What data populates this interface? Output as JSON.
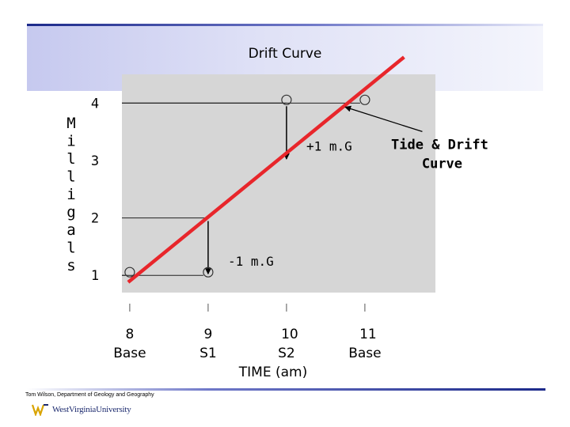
{
  "title": "Drift Curve",
  "footer": {
    "credit": "Tom Wilson, Department of Geology and Geography",
    "logo_text": "WestVirginiaUniversity"
  },
  "colors": {
    "fit_line": "#e8262b",
    "plot_bg": "#d6d6d6",
    "text": "#000000"
  },
  "chart_data": {
    "type": "scatter",
    "ylabel": "Milligals",
    "xlabel": "TIME (am)",
    "xlim": [
      7.9,
      11.9
    ],
    "ylim": [
      0.7,
      4.5
    ],
    "y_ticks": [
      1,
      2,
      3,
      4
    ],
    "x_ticks": [
      {
        "x": 8,
        "label": "8",
        "sublabel": "Base"
      },
      {
        "x": 9,
        "label": "9",
        "sublabel": "S1"
      },
      {
        "x": 10,
        "label": "10",
        "sublabel": "S2"
      },
      {
        "x": 11,
        "label": "11",
        "sublabel": "Base"
      }
    ],
    "grid": false,
    "points": [
      {
        "x": 8,
        "y": 1
      },
      {
        "x": 9,
        "y": 1
      },
      {
        "x": 10,
        "y": 4
      },
      {
        "x": 11,
        "y": 4
      }
    ],
    "trend_line": {
      "name": "Tide & Drift Curve",
      "start": {
        "x": 7.98,
        "y": 0.88
      },
      "end": {
        "x": 11.5,
        "y": 4.8
      }
    },
    "corrections": [
      {
        "x": 9,
        "from": 2,
        "to": 1,
        "label": "-1 m.G"
      },
      {
        "x": 10,
        "from": 4,
        "to": 3,
        "label": "+1 m.G"
      }
    ],
    "annotations": [
      {
        "text": "Tide & Drift",
        "text2": "Curve",
        "x": 11.45,
        "y": 3.2,
        "arrow_to": {
          "x": 10.75,
          "y": 3.93
        }
      }
    ]
  }
}
